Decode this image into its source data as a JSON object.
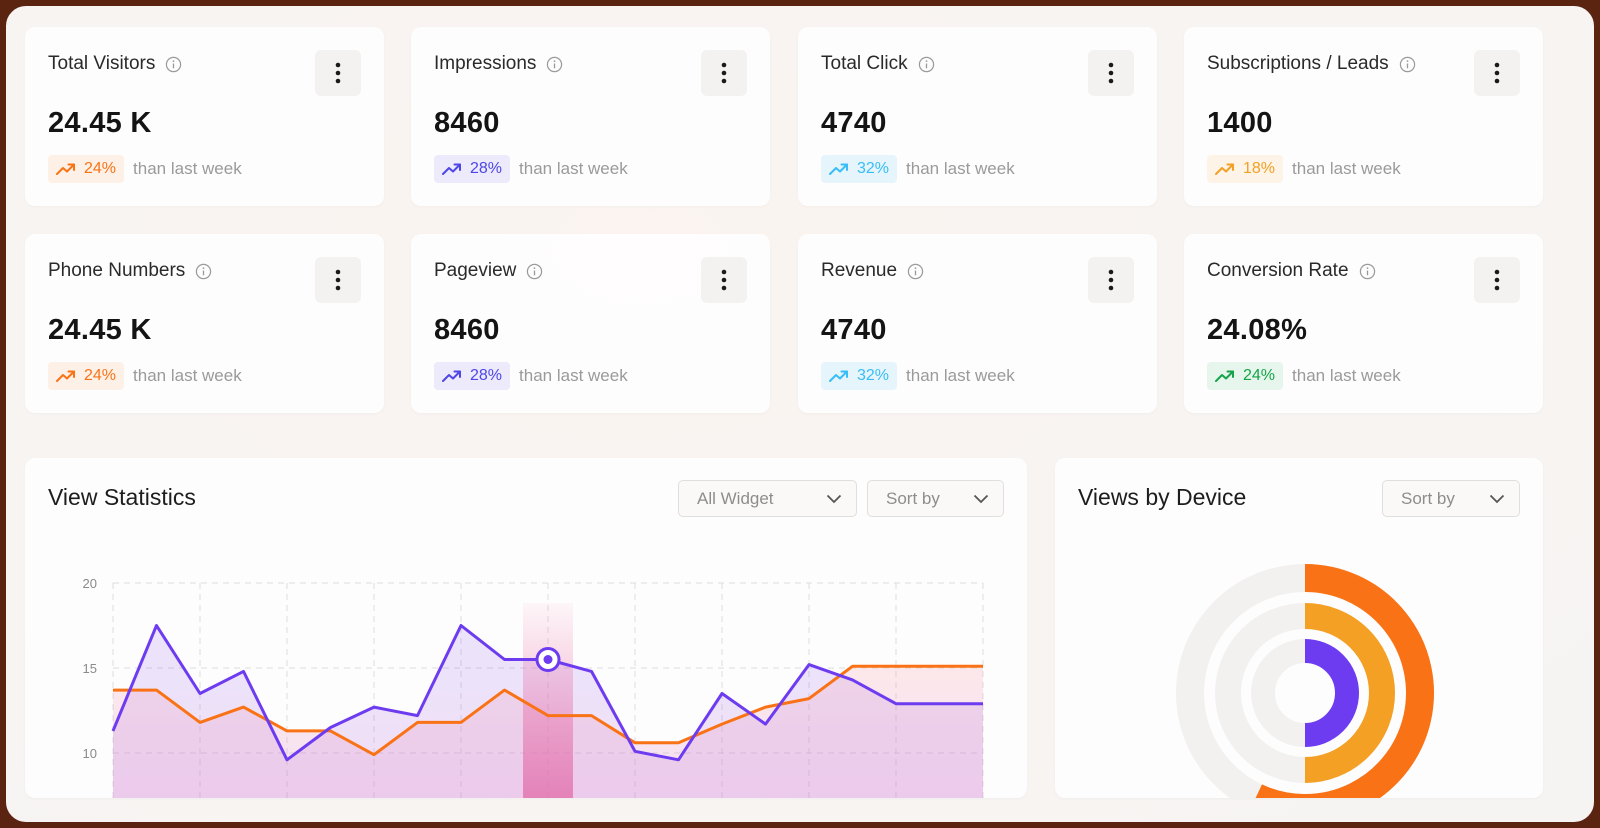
{
  "colors": {
    "orange": "#f97316",
    "indigo": "#4f46e5",
    "sky": "#38bdf8",
    "amber": "#f4a024",
    "green": "#16a34a",
    "violet": "#6d3cf0"
  },
  "stats": [
    {
      "title": "Total Visitors",
      "value": "24.45 K",
      "change": "24%",
      "note": "than last week",
      "color": "orange"
    },
    {
      "title": "Impressions",
      "value": "8460",
      "change": "28%",
      "note": "than last week",
      "color": "indigo"
    },
    {
      "title": "Total Click",
      "value": "4740",
      "change": "32%",
      "note": "than last week",
      "color": "sky"
    },
    {
      "title": "Subscriptions / Leads",
      "value": "1400",
      "change": "18%",
      "note": "than last week",
      "color": "amber"
    },
    {
      "title": "Phone Numbers",
      "value": "24.45 K",
      "change": "24%",
      "note": "than last week",
      "color": "orange"
    },
    {
      "title": "Pageview",
      "value": "8460",
      "change": "28%",
      "note": "than last week",
      "color": "indigo"
    },
    {
      "title": "Revenue",
      "value": "4740",
      "change": "32%",
      "note": "than last week",
      "color": "sky"
    },
    {
      "title": "Conversion Rate",
      "value": "24.08%",
      "change": "24%",
      "note": "than last week",
      "color": "green"
    }
  ],
  "icons": {
    "info": "info-circle-icon",
    "kebab": "more-vertical-icon",
    "trend": "trending-up-icon",
    "chevron": "chevron-down-icon"
  },
  "view_statistics": {
    "title": "View Statistics",
    "filter_dropdown": "All Widget",
    "sort_dropdown": "Sort by"
  },
  "views_by_device": {
    "title": "Views by Device",
    "sort_dropdown": "Sort by"
  },
  "chart_data": [
    {
      "type": "area",
      "title": "View Statistics",
      "x": [
        0,
        1,
        2,
        3,
        4,
        5,
        6,
        7,
        8,
        9,
        10,
        11,
        12,
        13,
        14,
        15,
        16,
        17,
        18,
        19,
        20
      ],
      "ylim": [
        7,
        20
      ],
      "yticks": [
        "20",
        "15",
        "10"
      ],
      "grid": true,
      "highlight_index": 10,
      "series": [
        {
          "color": "#6d3cf0",
          "values": [
            11.3,
            17.5,
            13.5,
            14.8,
            9.6,
            11.5,
            12.7,
            12.2,
            17.5,
            15.5,
            15.5,
            14.8,
            10.1,
            9.6,
            13.5,
            11.7,
            15.2,
            14.3,
            12.9,
            12.9,
            12.9
          ]
        },
        {
          "color": "#f97316",
          "values": [
            13.7,
            13.7,
            11.8,
            12.7,
            11.3,
            11.3,
            9.9,
            11.8,
            11.8,
            13.7,
            12.2,
            12.2,
            10.6,
            10.6,
            11.7,
            12.7,
            13.2,
            15.1,
            15.1,
            15.1,
            15.1
          ]
        }
      ]
    },
    {
      "type": "pie",
      "title": "Views by Device",
      "series": [
        {
          "color": "#f97316",
          "value": 0.57
        },
        {
          "color": "#f4a024",
          "value": 0.5
        },
        {
          "color": "#6d3cf0",
          "value": 0.5
        }
      ]
    }
  ]
}
